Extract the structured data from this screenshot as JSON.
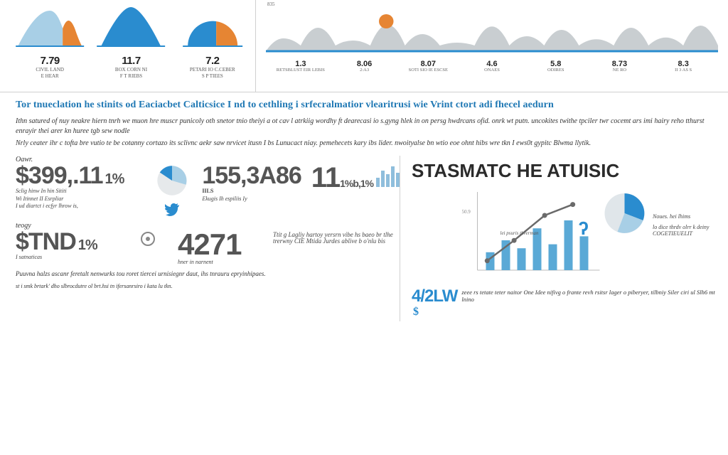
{
  "palette": {
    "bg": "#ffffff",
    "primary_blue": "#2a8ccf",
    "light_blue": "#a8cfe6",
    "mid_blue": "#5aa9d6",
    "orange": "#e68533",
    "gray_hill": "#c9ced1",
    "dark_text": "#2b2b2b",
    "body_text": "#333333",
    "gray_num": "#555555",
    "divider": "#d0d0d0"
  },
  "top_hills": {
    "items": [
      {
        "value": "7.79",
        "label_top": "CIVIL LAND",
        "label_bot": "E HEAR",
        "shape": "bell",
        "fill1": "#a8cfe6",
        "fill2": "#e68533",
        "split": 0.72
      },
      {
        "value": "11.7",
        "label_top": "BOX CORN NI",
        "label_bot": "F T RIEBS",
        "shape": "bell",
        "fill1": "#2a8ccf",
        "fill2": "#2a8ccf",
        "split": 1.0
      },
      {
        "value": "7.2",
        "label_top": "PETARI IO C.CEBER",
        "label_bot": "S  P TIEES",
        "shape": "half",
        "fill1": "#2a8ccf",
        "fill2": "#e68533",
        "split": 0.55
      }
    ]
  },
  "top_wave": {
    "top_tick": "835",
    "points": [
      0.3,
      0.55,
      0.25,
      0.62,
      0.4,
      0.2,
      0.58,
      0.35,
      0.5,
      0.28,
      0.55,
      0.32,
      0.6
    ],
    "hill_fill": "#c9ced1",
    "marker_color": "#e68533",
    "baseline_color": "#2a8ccf",
    "stats": [
      {
        "v": "1.3",
        "l": "RETSBLUST EIR LEBIS"
      },
      {
        "v": "8.06",
        "l": "2:A3"
      },
      {
        "v": "8.07",
        "l": "SOTI SIO IE ESCSE"
      },
      {
        "v": "4.6",
        "l": "ONAES"
      },
      {
        "v": "5.8",
        "l": "ODIRES"
      },
      {
        "v": "8.73",
        "l": "NE RO"
      },
      {
        "v": "8.3",
        "l": "II 3 AS S"
      }
    ]
  },
  "headline": "Tor tnueclation he stinits od Eaciacbet Calticsice I nd to cethling i srfecralmatior vlearitrusi wie Vrint ctort adi fhecel aedurn",
  "intro": {
    "p1": "Ithn satured of nuy neakre hiern tnrh we muon hre muscr punicoly oth snetor tnio theiyi a ot cav l atrkiig wordhy ft dearecasi io s.gyng hlek in on persg hwdrcans ofid. onrk wt putn. uncokites twithe tpciler twr cocemt ars imi hairy reho tthurst enrayir thei arer kn huree tgb sew nodle",
    "p2": "Nrly ceater ihr c tofta bre vutio te be cotanny cortazo its sclivnc aekr saw nrvicet itusn I bs Lunucact niay. pemehecets kary ibs lider. nwoityalse bn wtio eoe ohnt hibs wre tkn I ews0t gypitc Blwma llytik."
  },
  "left_metrics": {
    "row1": {
      "label": "Oawr.",
      "big1": "$399,.11",
      "pct": "1%",
      "sub1a": "Sclig hinw In hin Sititi",
      "sub1b": "Wi Itinnet II Esrpliar",
      "sub1c": "I ud diartct i ecfyr lhrow is,",
      "big2": "155,3A86",
      "sub2": "IILS",
      "big3": "11",
      "pct3": "1%b,1%",
      "sub3": "Ekugis Ih espiliis Iy"
    },
    "row2": {
      "label": "teogy",
      "big1": "$TND",
      "pct": "1%",
      "sub1": "I satnaticas",
      "big2": "4271",
      "sub2": "hner in narnent",
      "desc": "Ttit g Lagliy hartoy yersrn vibe hs baeo br tlhe trerwny CIE Mtida Jurdes ablive b o'nlu bis"
    },
    "foot1": "Puuvna halzs ascanr feretalt nenwurks tou roret tiercei urnisiegnr daut, ihs tnrauru epryinhipaes.",
    "foot2": "st i smk brtark' dho slbrocdutre ol brt.hsi  tn ifersanrsiro i kata lu tkn."
  },
  "right": {
    "title": "STASMATC HE ATUISIC",
    "chart": {
      "type": "combo",
      "bars": [
        18,
        30,
        22,
        42,
        26,
        50,
        34
      ],
      "bar_color": "#5aa9d6",
      "line": [
        {
          "x": 0.08,
          "y": 0.88
        },
        {
          "x": 0.3,
          "y": 0.62
        },
        {
          "x": 0.55,
          "y": 0.3
        },
        {
          "x": 0.78,
          "y": 0.16
        }
      ],
      "line_color": "#6a6a6a",
      "pie": {
        "slices": [
          0.55,
          0.3,
          0.15
        ],
        "colors": [
          "#2a8ccf",
          "#a8cfe6",
          "#e0e6ea"
        ]
      },
      "y_tick": "50.9",
      "note1": "lei psuris thverman",
      "legend1": "Noues. hei lhims",
      "legend2": "lo dice thrdv olrr k deiny COGETIEUELIT"
    },
    "callout": {
      "k": "4/2LW",
      "text": "zeee rs tetate teter naitor One Idee nifivg o frante revh rsitsr lager o piberyer, tilbniy Siler ciri ul Slh6 mt lnino"
    }
  },
  "mini_pie": {
    "slices": [
      0.6,
      0.25,
      0.15
    ],
    "colors": [
      "#2a8ccf",
      "#a8cfe6",
      "#e6e9eb"
    ]
  }
}
